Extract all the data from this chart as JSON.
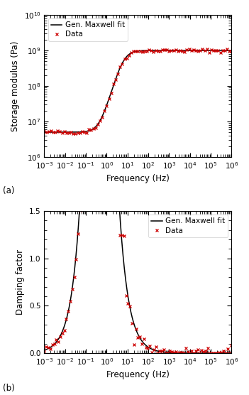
{
  "storage_ylabel": "Storage modulus (Pa)",
  "damping_ylabel": "Damping factor",
  "xlabel": "Frequency (Hz)",
  "legend_data_label": "Data",
  "legend_fit_label": "Gen. Maxwell fit",
  "label_a": "(a)",
  "label_b": "(b)",
  "data_color": "#cc0000",
  "fit_color": "#000000",
  "data_marker": "x",
  "data_markersize": 3.5,
  "fit_linewidth": 1.1,
  "background_color": "#ffffff",
  "tick_labelsize": 7.5,
  "axis_labelsize": 8.5,
  "legend_fontsize": 7.5,
  "storage_E_inf": 5000000.0,
  "storage_E_k": [
    990000000.0
  ],
  "storage_tau_k": [
    0.025
  ],
  "storage_ylim": [
    1000000.0,
    10000000000.0
  ],
  "damping_ylim": [
    0,
    1.5
  ],
  "damping_E_inf": 5000000.0,
  "damping_E_k": [
    990000000.0
  ],
  "damping_tau_k": [
    0.025
  ],
  "freq_min": -3,
  "freq_max": 6,
  "n_fit": 1000,
  "n_data_storage": 85,
  "n_data_damping": 95,
  "storage_noise_sigma": 0.025,
  "damping_noise_base": 0.03,
  "damping_noise_peak": 0.14,
  "random_seed": 42
}
